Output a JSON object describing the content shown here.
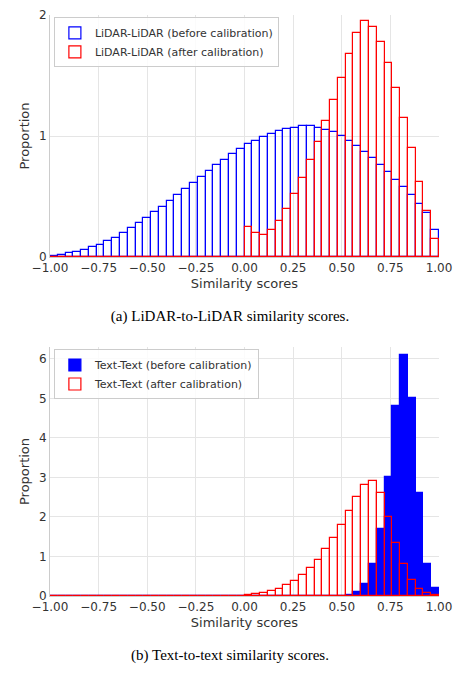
{
  "chart_data": [
    {
      "type": "histogram",
      "caption": "(a) LiDAR-to-LiDAR similarity scores.",
      "x_label": "Similarity scores",
      "y_label": "Proportion",
      "bins": [
        -1,
        -0.96,
        -0.92,
        -0.88,
        -0.84,
        -0.8,
        -0.76,
        -0.72,
        -0.68,
        -0.64,
        -0.6,
        -0.56,
        -0.52,
        -0.48,
        -0.44,
        -0.4,
        -0.36,
        -0.32,
        -0.28,
        -0.24,
        -0.2,
        -0.16,
        -0.12,
        -0.08,
        -0.04,
        0,
        0.04,
        0.08,
        0.12,
        0.16,
        0.2,
        0.24,
        0.28,
        0.32,
        0.36,
        0.4,
        0.44,
        0.48,
        0.52,
        0.56,
        0.6,
        0.64,
        0.68,
        0.72,
        0.76,
        0.8,
        0.84,
        0.88,
        0.92,
        0.96,
        1
      ],
      "series": [
        {
          "name": "LiDAR-LiDAR (before calibration)",
          "color": "#0000ff",
          "marker": "outline",
          "values": [
            0.01,
            0.02,
            0.03,
            0.04,
            0.06,
            0.08,
            0.1,
            0.13,
            0.16,
            0.2,
            0.24,
            0.28,
            0.32,
            0.37,
            0.41,
            0.46,
            0.51,
            0.56,
            0.61,
            0.66,
            0.71,
            0.76,
            0.8,
            0.85,
            0.89,
            0.93,
            0.96,
            0.99,
            1.02,
            1.04,
            1.06,
            1.07,
            1.08,
            1.08,
            1.07,
            1.05,
            1.03,
            1.0,
            0.96,
            0.92,
            0.87,
            0.82,
            0.76,
            0.7,
            0.64,
            0.58,
            0.51,
            0.44,
            0.36,
            0.22
          ]
        },
        {
          "name": "LiDAR-LiDAR (after calibration)",
          "color": "#ff0000",
          "marker": "outline",
          "values": [
            0,
            0,
            0,
            0,
            0,
            0,
            0,
            0,
            0,
            0,
            0,
            0,
            0,
            0,
            0,
            0,
            0,
            0,
            0,
            0,
            0,
            0,
            0,
            0,
            0,
            0.25,
            0.2,
            0.18,
            0.22,
            0.3,
            0.4,
            0.52,
            0.65,
            0.8,
            0.95,
            1.12,
            1.3,
            1.48,
            1.68,
            1.85,
            1.95,
            1.9,
            1.78,
            1.6,
            1.4,
            1.15,
            0.9,
            0.62,
            0.38,
            0.15
          ]
        }
      ],
      "xlim": [
        -1,
        1
      ],
      "xticks": [
        {
          "value": -1,
          "label": "−1.00"
        },
        {
          "value": -0.75,
          "label": "−0.75"
        },
        {
          "value": -0.5,
          "label": "−0.50"
        },
        {
          "value": -0.25,
          "label": "−0.25"
        },
        {
          "value": 0,
          "label": "0.00"
        },
        {
          "value": 0.25,
          "label": "0.25"
        },
        {
          "value": 0.5,
          "label": "0.50"
        },
        {
          "value": 0.75,
          "label": "0.75"
        },
        {
          "value": 1,
          "label": "1.00"
        }
      ],
      "ylim": [
        0,
        2
      ],
      "yticks": [
        0,
        1,
        2
      ],
      "grid": true,
      "legend": "upper left"
    },
    {
      "type": "histogram",
      "caption": "(b) Text-to-text similarity scores.",
      "x_label": "Similarity scores",
      "y_label": "Proportion",
      "bins": [
        -1,
        -0.96,
        -0.92,
        -0.88,
        -0.84,
        -0.8,
        -0.76,
        -0.72,
        -0.68,
        -0.64,
        -0.6,
        -0.56,
        -0.52,
        -0.48,
        -0.44,
        -0.4,
        -0.36,
        -0.32,
        -0.28,
        -0.24,
        -0.2,
        -0.16,
        -0.12,
        -0.08,
        -0.04,
        0,
        0.04,
        0.08,
        0.12,
        0.16,
        0.2,
        0.24,
        0.28,
        0.32,
        0.36,
        0.4,
        0.44,
        0.48,
        0.52,
        0.56,
        0.6,
        0.64,
        0.68,
        0.72,
        0.76,
        0.8,
        0.84,
        0.88,
        0.92,
        0.96,
        1
      ],
      "series": [
        {
          "name": "Text-Text (before calibration)",
          "color": "#0000ff",
          "marker": "filled",
          "values": [
            0,
            0,
            0,
            0,
            0,
            0,
            0,
            0,
            0,
            0,
            0,
            0,
            0,
            0,
            0,
            0,
            0,
            0,
            0,
            0,
            0,
            0,
            0,
            0,
            0,
            0,
            0,
            0,
            0,
            0,
            0,
            0,
            0,
            0,
            0,
            0,
            0,
            0.01,
            0.03,
            0.1,
            0.3,
            0.8,
            1.7,
            3.0,
            4.8,
            6.1,
            5.0,
            2.6,
            0.8,
            0.2
          ]
        },
        {
          "name": "Text-Text (after calibration)",
          "color": "#ff0000",
          "marker": "outline",
          "values": [
            0,
            0,
            0,
            0,
            0,
            0,
            0,
            0,
            0,
            0,
            0,
            0,
            0,
            0,
            0,
            0,
            0,
            0,
            0,
            0,
            0,
            0,
            0,
            0,
            0,
            0.02,
            0.04,
            0.07,
            0.12,
            0.18,
            0.27,
            0.38,
            0.52,
            0.7,
            0.92,
            1.18,
            1.48,
            1.8,
            2.15,
            2.5,
            2.8,
            2.9,
            2.6,
            2.0,
            1.35,
            0.8,
            0.4,
            0.18,
            0.07,
            0.02
          ]
        }
      ],
      "xlim": [
        -1,
        1
      ],
      "xticks": [
        {
          "value": -1,
          "label": "−1.00"
        },
        {
          "value": -0.75,
          "label": "−0.75"
        },
        {
          "value": -0.5,
          "label": "−0.50"
        },
        {
          "value": -0.25,
          "label": "−0.25"
        },
        {
          "value": 0,
          "label": "0.00"
        },
        {
          "value": 0.25,
          "label": "0.25"
        },
        {
          "value": 0.5,
          "label": "0.50"
        },
        {
          "value": 0.75,
          "label": "0.75"
        },
        {
          "value": 1,
          "label": "1.00"
        }
      ],
      "ylim": [
        0,
        6.3
      ],
      "yticks": [
        0,
        1,
        2,
        3,
        4,
        5,
        6
      ],
      "grid": true,
      "legend": "upper left"
    }
  ]
}
